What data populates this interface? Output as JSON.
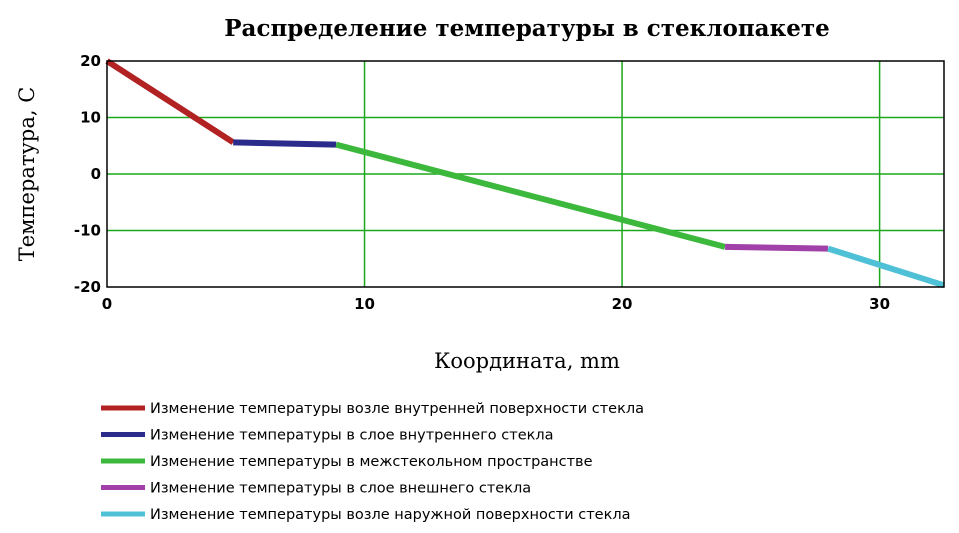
{
  "chart_data": {
    "type": "line",
    "title": "Распределение температуры в стеклопакете",
    "xlabel": "Координата, mm",
    "ylabel": "Температура, С",
    "xlim": [
      0,
      32.5
    ],
    "ylim": [
      -20,
      20
    ],
    "xticks": [
      0,
      10,
      20,
      30
    ],
    "yticks": [
      20,
      10,
      0,
      -10,
      -20
    ],
    "grid": true,
    "legend_position": "bottom",
    "series": [
      {
        "name": "Изменение температуры возле внутренней поверхности стекла",
        "color": "#b22222",
        "x": [
          0,
          4.9
        ],
        "y": [
          20,
          5.6
        ]
      },
      {
        "name": "Изменение температуры в слое внутреннего стекла",
        "color": "#2b2b8c",
        "x": [
          4.9,
          8.9
        ],
        "y": [
          5.6,
          5.2
        ]
      },
      {
        "name": "Изменение температуры в межстекольном пространстве",
        "color": "#3cb83c",
        "x": [
          8.9,
          24
        ],
        "y": [
          5.2,
          -12.9
        ]
      },
      {
        "name": "Изменение температуры в  слое внешнего стекла",
        "color": "#a040a8",
        "x": [
          24,
          28
        ],
        "y": [
          -12.9,
          -13.2
        ]
      },
      {
        "name": "Изменение температуры возле наружной поверхности стекла",
        "color": "#4fc1d6",
        "x": [
          28,
          32.5
        ],
        "y": [
          -13.2,
          -19.7
        ]
      }
    ]
  }
}
